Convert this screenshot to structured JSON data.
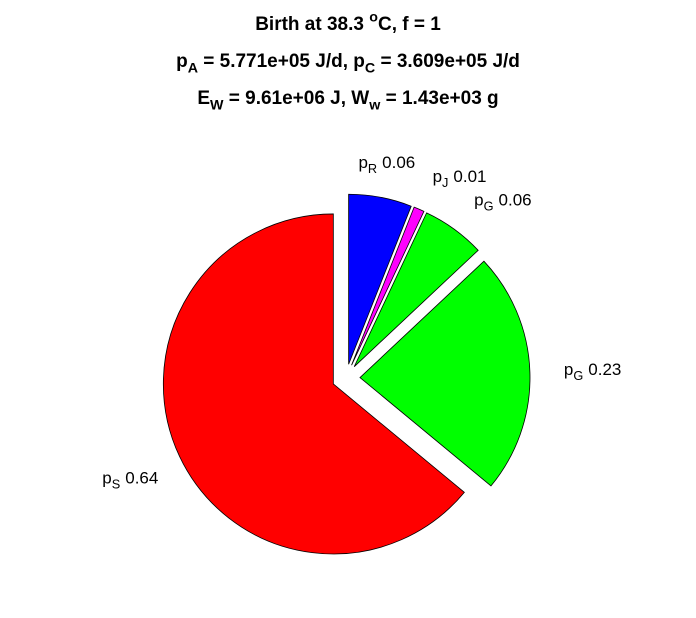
{
  "chart_data": {
    "type": "pie",
    "title": [
      [
        {
          "text": "Birth at 38.3 "
        },
        {
          "sup": "o"
        },
        {
          "text": "C, f = 1"
        }
      ],
      [
        {
          "text": "p"
        },
        {
          "sub": "A"
        },
        {
          "text": " = 5.771e+05 J/d, p"
        },
        {
          "sub": "C"
        },
        {
          "text": " = 3.609e+05 J/d"
        }
      ],
      [
        {
          "text": "E"
        },
        {
          "sub": "W"
        },
        {
          "text": " = 9.61e+06 J, W"
        },
        {
          "sub": "w"
        },
        {
          "text": " = 1.43e+03 g"
        }
      ]
    ],
    "labels": [
      [
        {
          "text": "p"
        },
        {
          "sub": "R"
        }
      ],
      [
        {
          "text": "p"
        },
        {
          "sub": "J"
        }
      ],
      [
        {
          "text": "p"
        },
        {
          "sub": "G"
        }
      ],
      [
        {
          "text": "p"
        },
        {
          "sub": "G"
        }
      ],
      [
        {
          "text": "p"
        },
        {
          "sub": "S"
        }
      ]
    ],
    "values": [
      0.06,
      0.01,
      0.06,
      0.23,
      0.64
    ],
    "colors": [
      "#0000ff",
      "#ff00ff",
      "#00ff00",
      "#00ff00",
      "#ff0000"
    ]
  }
}
